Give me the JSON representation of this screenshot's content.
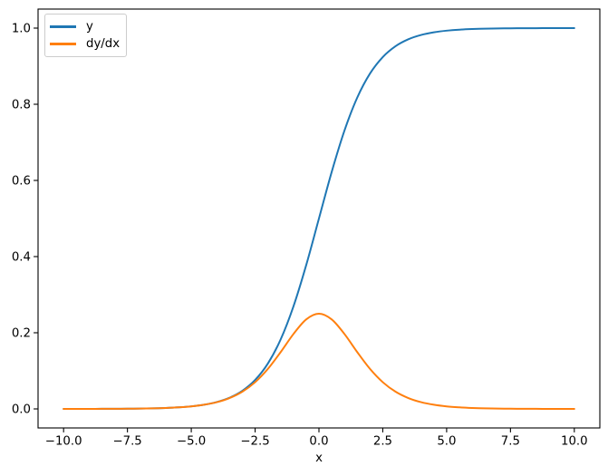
{
  "chart_data": {
    "type": "line",
    "title": "",
    "xlabel": "x",
    "ylabel": "",
    "background": "#ffffff",
    "axes_edge_color": "#000000",
    "xlim": [
      -11,
      11
    ],
    "ylim": [
      -0.05,
      1.05
    ],
    "grid": false,
    "xticks": {
      "values": [
        -10,
        -7.5,
        -5,
        -2.5,
        0,
        2.5,
        5,
        7.5,
        10
      ],
      "labels": [
        "−10.0",
        "−7.5",
        "−5.0",
        "−2.5",
        "0.0",
        "2.5",
        "5.0",
        "7.5",
        "10.0"
      ]
    },
    "yticks": {
      "values": [
        0,
        0.2,
        0.4,
        0.6,
        0.8,
        1.0
      ],
      "labels": [
        "0.0",
        "0.2",
        "0.4",
        "0.6",
        "0.8",
        "1.0"
      ]
    },
    "legend": {
      "position": "upper left",
      "entries": [
        {
          "label": "y",
          "color": "#1f77b4"
        },
        {
          "label": "dy/dx",
          "color": "#ff7f0e"
        }
      ]
    },
    "x": [
      -10,
      -9.5,
      -9,
      -8.5,
      -8,
      -7.5,
      -7,
      -6.5,
      -6,
      -5.5,
      -5,
      -4.5,
      -4,
      -3.5,
      -3,
      -2.5,
      -2,
      -1.5,
      -1,
      -0.5,
      0,
      0.5,
      1,
      1.5,
      2,
      2.5,
      3,
      3.5,
      4,
      4.5,
      5,
      5.5,
      6,
      6.5,
      7,
      7.5,
      8,
      8.5,
      9,
      9.5,
      10
    ],
    "series": [
      {
        "name": "y",
        "color": "#1f77b4",
        "values": [
          0.0,
          0.0001,
          0.0001,
          0.0002,
          0.0003,
          0.0006,
          0.0009,
          0.0015,
          0.0025,
          0.0041,
          0.0067,
          0.011,
          0.018,
          0.0293,
          0.0474,
          0.0759,
          0.1192,
          0.1824,
          0.2689,
          0.3775,
          0.5,
          0.6225,
          0.7311,
          0.8176,
          0.8808,
          0.9241,
          0.9526,
          0.9707,
          0.982,
          0.989,
          0.9933,
          0.9959,
          0.9975,
          0.9985,
          0.9991,
          0.9994,
          0.9997,
          0.9998,
          0.9999,
          0.9999,
          1.0
        ]
      },
      {
        "name": "dy/dx",
        "color": "#ff7f0e",
        "values": [
          0.0,
          0.0001,
          0.0001,
          0.0002,
          0.0003,
          0.0006,
          0.0009,
          0.0015,
          0.0025,
          0.0041,
          0.0066,
          0.0109,
          0.0177,
          0.0285,
          0.0452,
          0.0701,
          0.105,
          0.1491,
          0.1966,
          0.235,
          0.25,
          0.235,
          0.1966,
          0.1491,
          0.105,
          0.0701,
          0.0452,
          0.0285,
          0.0177,
          0.0109,
          0.0066,
          0.0041,
          0.0025,
          0.0015,
          0.0009,
          0.0006,
          0.0003,
          0.0002,
          0.0001,
          0.0001,
          0.0
        ]
      }
    ]
  }
}
